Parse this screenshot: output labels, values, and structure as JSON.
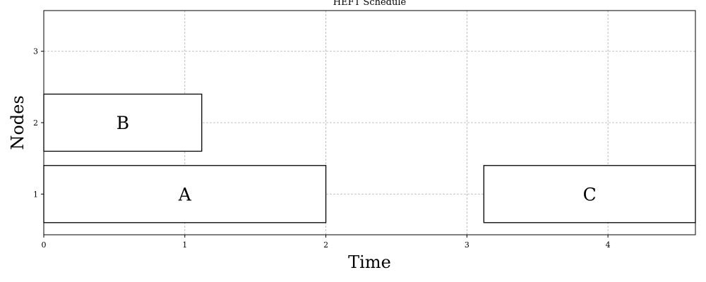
{
  "chart_data": {
    "type": "gantt",
    "title": "HEFT Schedule",
    "xlabel": "Time",
    "ylabel": "Nodes",
    "xlim": [
      0,
      4.62
    ],
    "ylim": [
      0.43,
      3.57
    ],
    "xticks": [
      0,
      1,
      2,
      3,
      4
    ],
    "yticks": [
      1,
      2,
      3
    ],
    "grid": true,
    "tasks": [
      {
        "name": "A",
        "node": 1,
        "start": 0,
        "end": 2.0
      },
      {
        "name": "B",
        "node": 2,
        "start": 0,
        "end": 1.12
      },
      {
        "name": "C",
        "node": 1,
        "start": 3.12,
        "end": 4.62
      }
    ],
    "bar_height": 0.8,
    "colors": {
      "bar_fill": "#ffffff",
      "bar_edge": "#000000",
      "grid": "#b0b0b0"
    }
  }
}
